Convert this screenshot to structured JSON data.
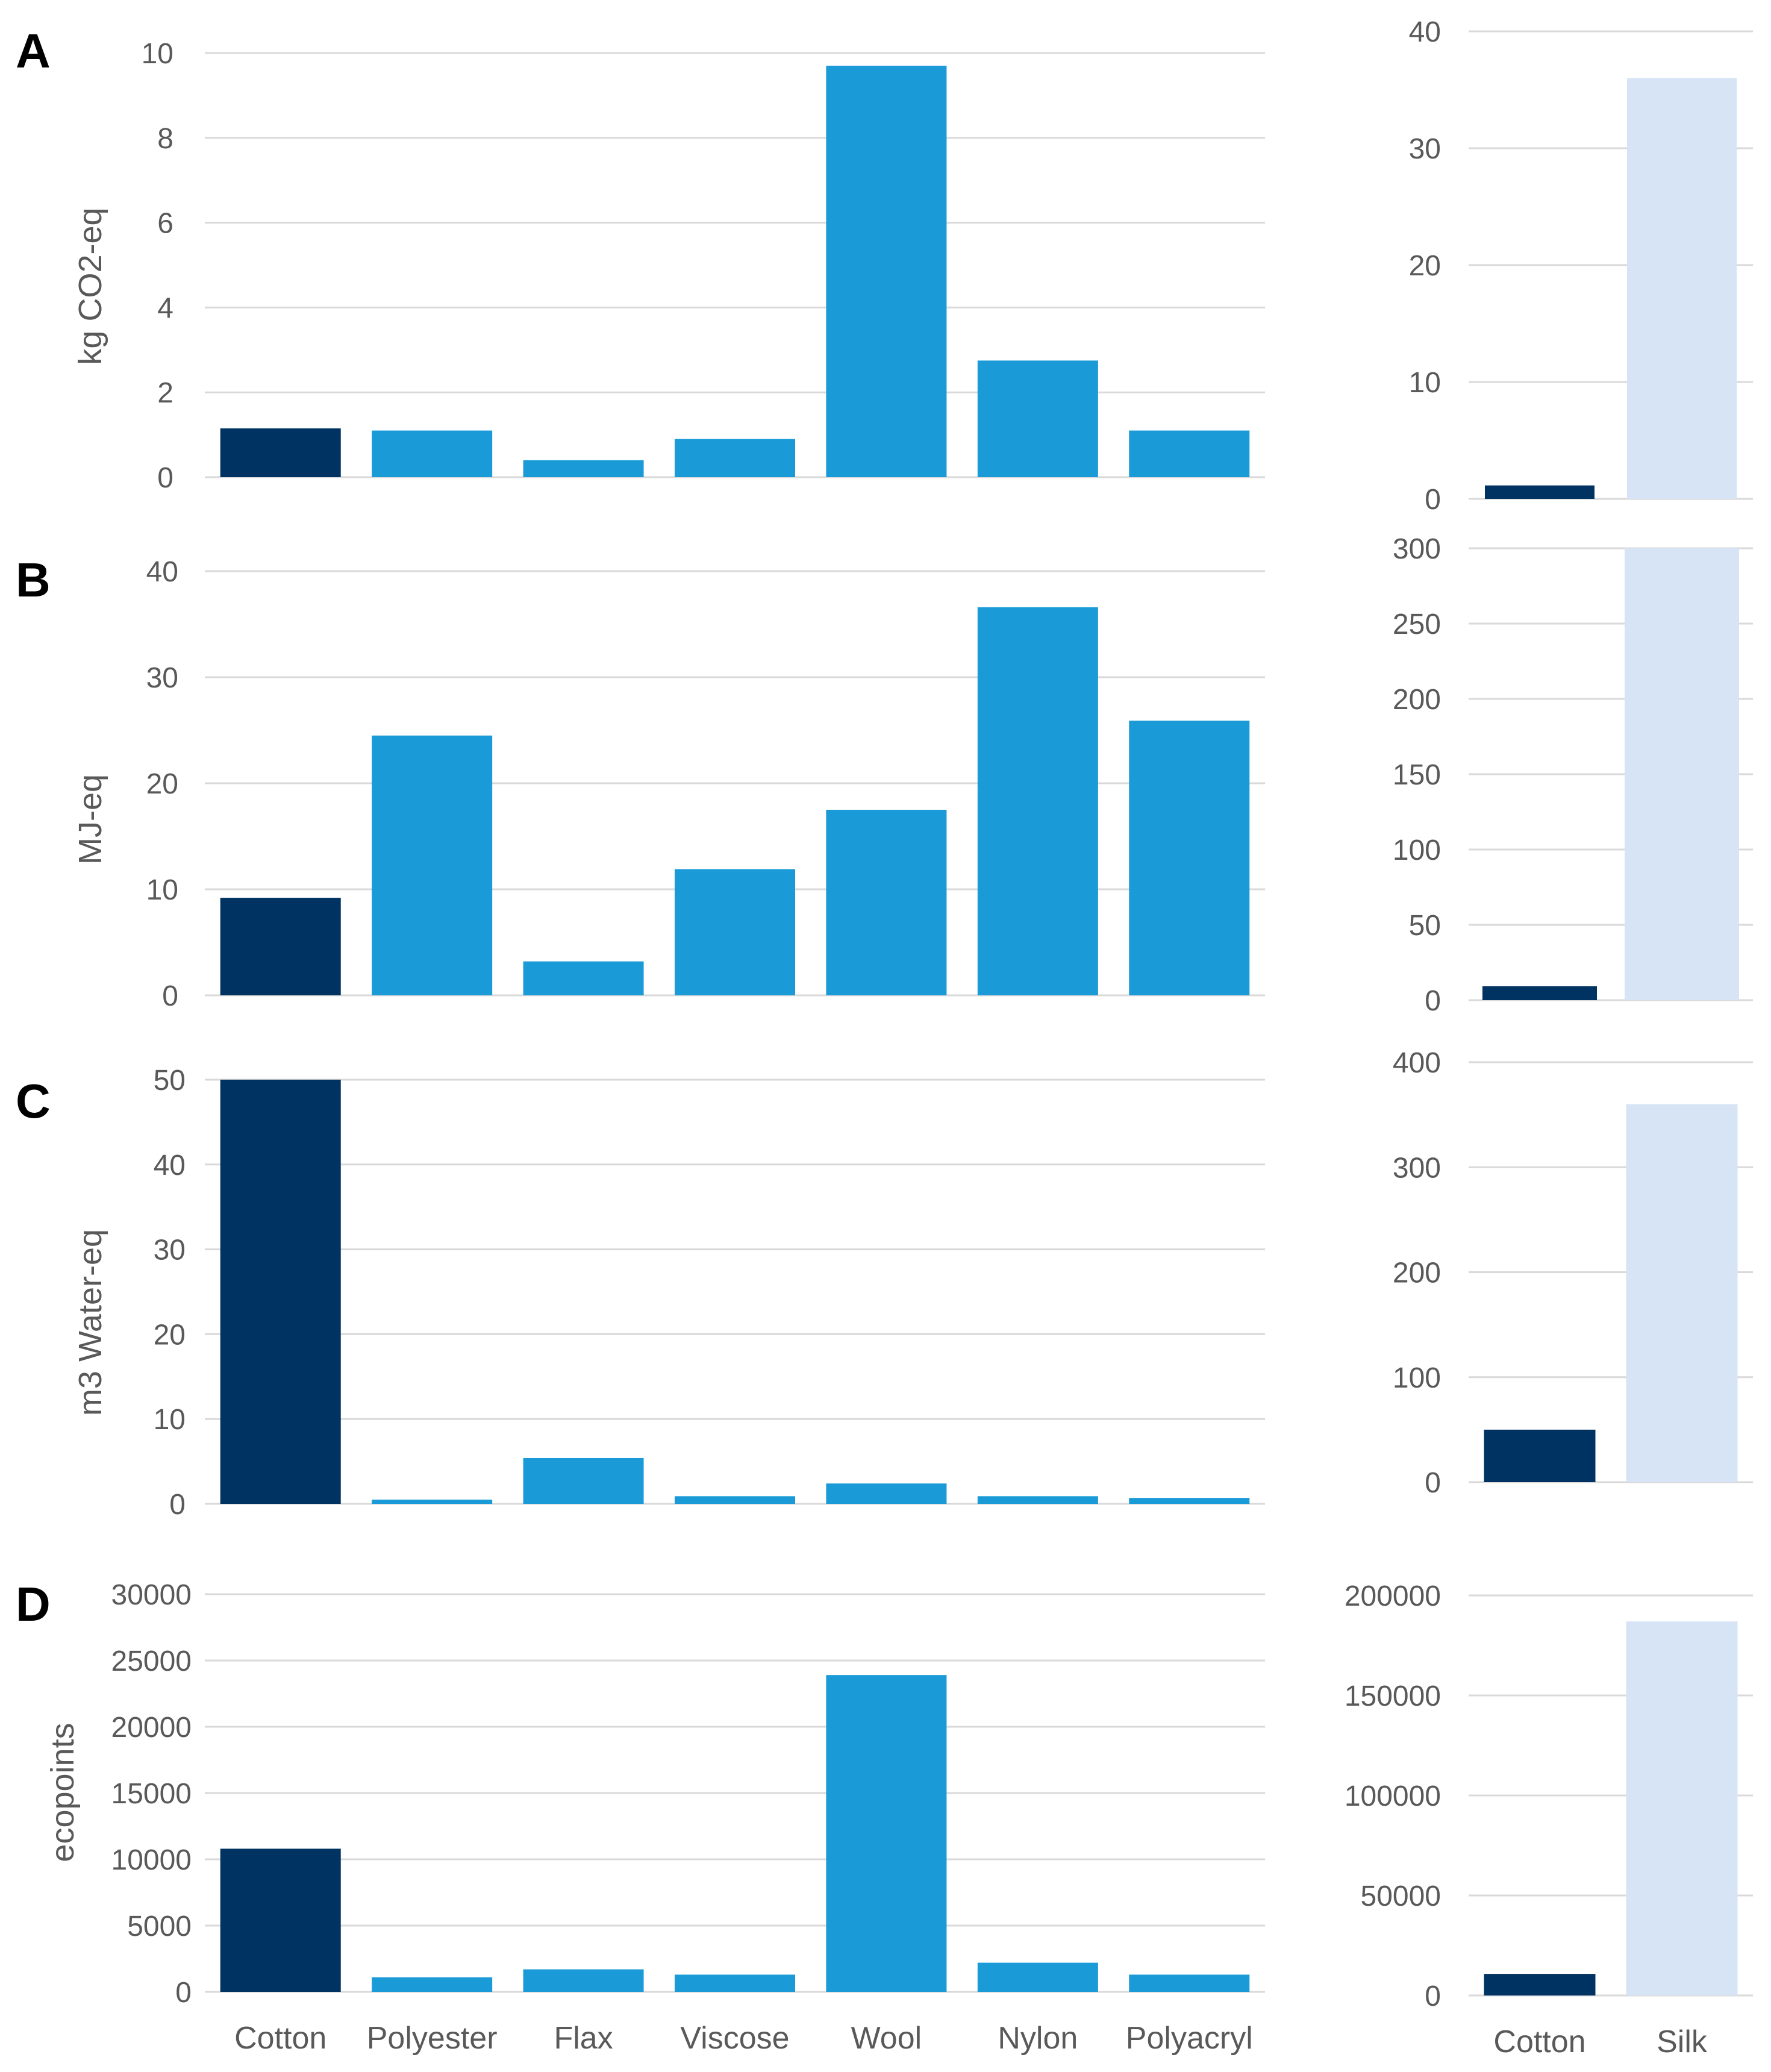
{
  "colors": {
    "cotton": "#003361",
    "other": "#1a9bd7",
    "silk": "#d6e4f5",
    "grid": "#d9d9d9",
    "text": "#595959"
  },
  "panels": [
    {
      "letter": "A",
      "ylabel": "kg CO2-eq"
    },
    {
      "letter": "B",
      "ylabel": "MJ-eq"
    },
    {
      "letter": "C",
      "ylabel": "m3 Water-eq"
    },
    {
      "letter": "D",
      "ylabel": "ecopoints"
    }
  ],
  "chart_data": [
    {
      "type": "bar",
      "panel": "A",
      "ylabel": "kg CO2-eq",
      "xlabel": "",
      "categories": [
        "Cotton",
        "Polyester",
        "Flax",
        "Viscose",
        "Wool",
        "Nylon",
        "Polyacryl"
      ],
      "values": [
        1.15,
        1.1,
        0.4,
        0.9,
        9.7,
        2.75,
        1.1
      ],
      "ylim": [
        0,
        10
      ],
      "yticks": [
        0,
        2,
        4,
        6,
        8,
        10
      ]
    },
    {
      "type": "bar",
      "panel": "A-inset",
      "categories": [
        "Cotton",
        "Silk"
      ],
      "values": [
        1.15,
        36
      ],
      "ylim": [
        0,
        40
      ],
      "yticks": [
        0,
        10,
        20,
        30,
        40
      ]
    },
    {
      "type": "bar",
      "panel": "B",
      "ylabel": "MJ-eq",
      "xlabel": "",
      "categories": [
        "Cotton",
        "Polyester",
        "Flax",
        "Viscose",
        "Wool",
        "Nylon",
        "Polyacryl"
      ],
      "values": [
        9.2,
        24.5,
        3.2,
        11.9,
        17.5,
        36.6,
        25.9
      ],
      "ylim": [
        0,
        40
      ],
      "yticks": [
        0,
        10,
        20,
        30,
        40
      ]
    },
    {
      "type": "bar",
      "panel": "B-inset",
      "categories": [
        "Cotton",
        "Silk"
      ],
      "values": [
        9.2,
        300
      ],
      "ylim": [
        0,
        300
      ],
      "yticks": [
        0,
        50,
        100,
        150,
        200,
        250,
        300
      ]
    },
    {
      "type": "bar",
      "panel": "C",
      "ylabel": "m3 Water-eq",
      "xlabel": "",
      "categories": [
        "Cotton",
        "Polyester",
        "Flax",
        "Viscose",
        "Wool",
        "Nylon",
        "Polyacryl"
      ],
      "values": [
        50,
        0.5,
        5.4,
        0.9,
        2.4,
        0.9,
        0.7
      ],
      "ylim": [
        0,
        50
      ],
      "yticks": [
        0,
        10,
        20,
        30,
        40,
        50
      ]
    },
    {
      "type": "bar",
      "panel": "C-inset",
      "categories": [
        "Cotton",
        "Silk"
      ],
      "values": [
        50,
        360
      ],
      "ylim": [
        0,
        400
      ],
      "yticks": [
        0,
        100,
        200,
        300,
        400
      ]
    },
    {
      "type": "bar",
      "panel": "D",
      "ylabel": "ecopoints",
      "xlabel": "",
      "categories": [
        "Cotton",
        "Polyester",
        "Flax",
        "Viscose",
        "Wool",
        "Nylon",
        "Polyacryl"
      ],
      "values": [
        10800,
        1100,
        1700,
        1300,
        23900,
        2200,
        1300
      ],
      "ylim": [
        0,
        30000
      ],
      "yticks": [
        0,
        5000,
        10000,
        15000,
        20000,
        25000,
        30000
      ]
    },
    {
      "type": "bar",
      "panel": "D-inset",
      "categories": [
        "Cotton",
        "Silk"
      ],
      "values": [
        10800,
        187000
      ],
      "ylim": [
        0,
        200000
      ],
      "yticks": [
        0,
        50000,
        100000,
        150000,
        200000
      ]
    }
  ]
}
